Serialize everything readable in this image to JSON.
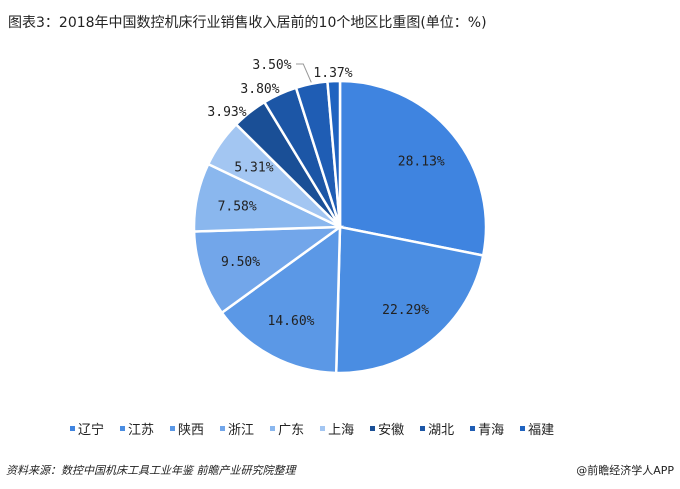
{
  "title": "图表3：2018年中国数控机床行业销售收入居前的10个地区比重图(单位：%)",
  "chart_data": {
    "type": "pie",
    "title": "图表3：2018年中国数控机床行业销售收入居前的10个地区比重图(单位：%)",
    "categories": [
      "辽宁",
      "江苏",
      "陕西",
      "浙江",
      "广东",
      "上海",
      "安徽",
      "湖北",
      "青海",
      "福建"
    ],
    "values": [
      28.13,
      22.29,
      14.6,
      9.5,
      7.58,
      5.31,
      3.93,
      3.8,
      3.5,
      1.37
    ],
    "labels": [
      "28.13%",
      "22.29%",
      "14.60%",
      "9.50%",
      "7.58%",
      "5.31%",
      "3.93%",
      "3.80%",
      "3.50%",
      "1.37%"
    ],
    "colors": [
      "#3f84e0",
      "#4a8de2",
      "#5b98e6",
      "#72a6ea",
      "#8ab7ee",
      "#a3c6f2",
      "#1a4f96",
      "#1c56a6",
      "#1f5db4",
      "#1f63c0"
    ],
    "legend_position": "bottom"
  },
  "source": "资料来源：数控中国机床工具工业年鉴 前瞻产业研究院整理",
  "credit": "@前瞻经济学人APP"
}
